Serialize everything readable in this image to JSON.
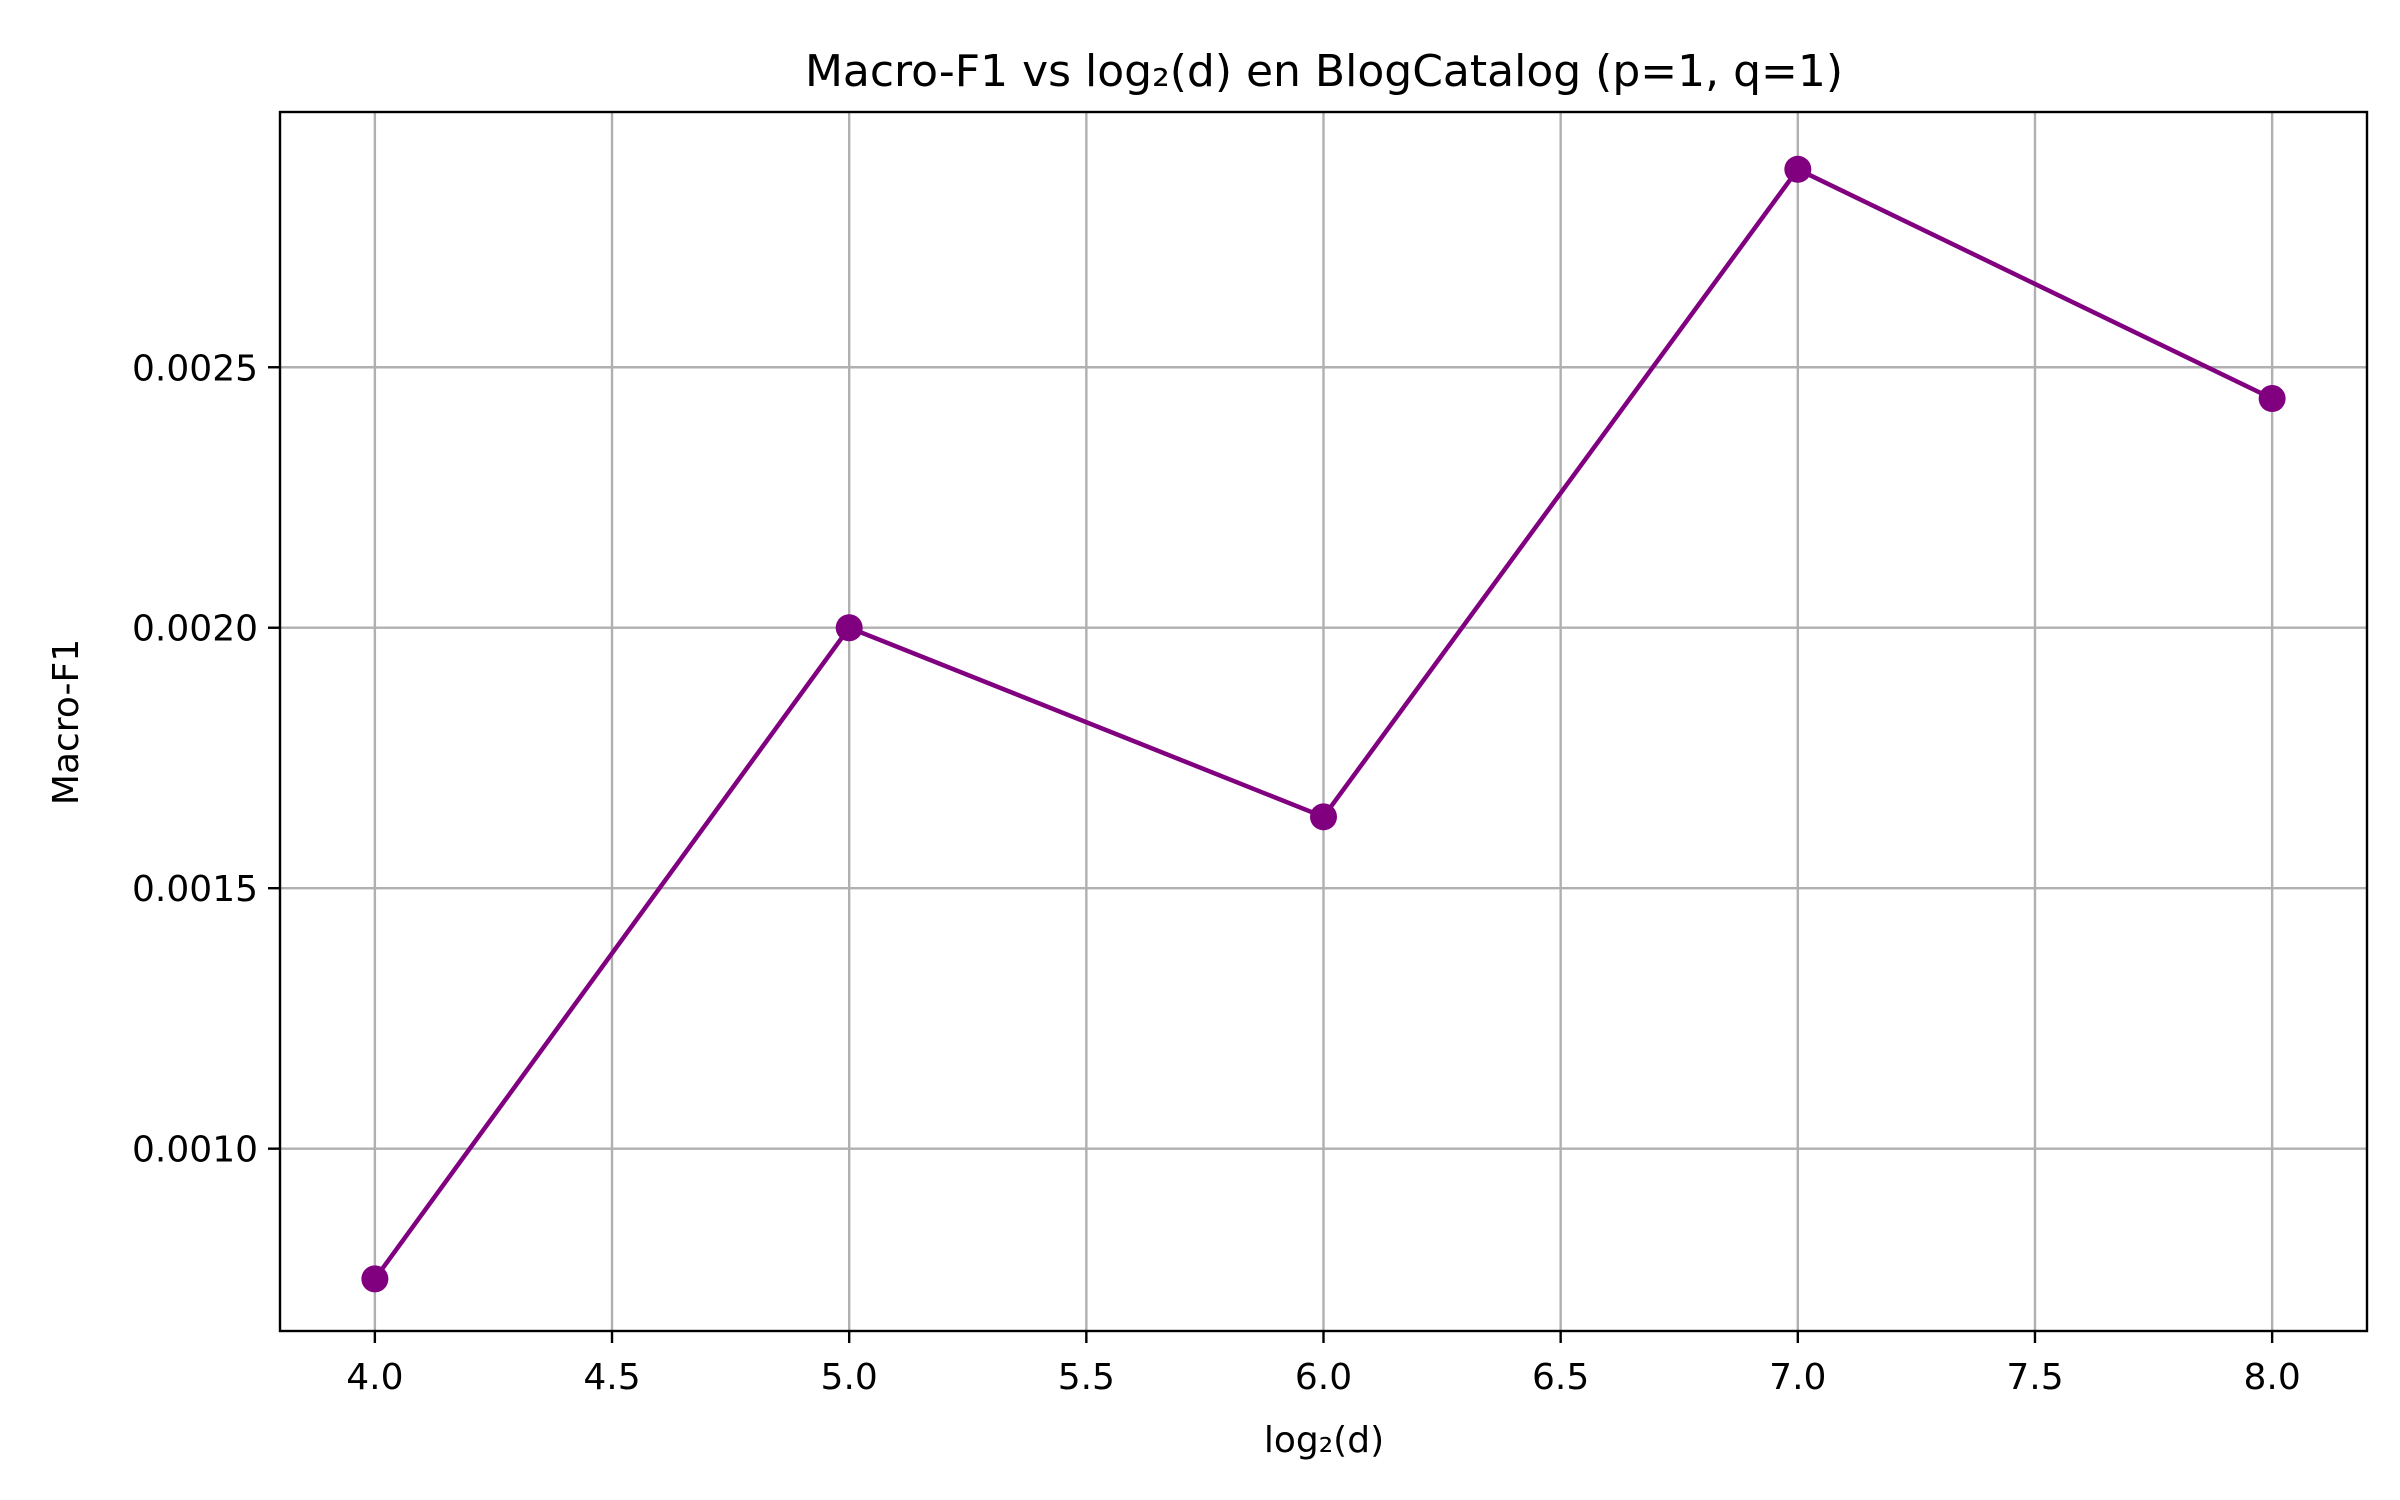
{
  "chart_data": {
    "type": "line",
    "title": "Macro-F1 vs log₂(d) en BlogCatalog (p=1, q=1)",
    "xlabel": "log₂(d)",
    "ylabel": "Macro-F1",
    "xlim": [
      3.8,
      8.2
    ],
    "ylim": [
      0.00065,
      0.00299
    ],
    "xticks": [
      4.0,
      4.5,
      5.0,
      5.5,
      6.0,
      6.5,
      7.0,
      7.5,
      8.0
    ],
    "xtick_labels": [
      "4.0",
      "4.5",
      "5.0",
      "5.5",
      "6.0",
      "6.5",
      "7.0",
      "7.5",
      "8.0"
    ],
    "yticks": [
      0.001,
      0.0015,
      0.002,
      0.0025
    ],
    "ytick_labels": [
      "0.0010",
      "0.0015",
      "0.0020",
      "0.0025"
    ],
    "grid": true,
    "series": [
      {
        "x": [
          4,
          5,
          6,
          7,
          8
        ],
        "values": [
          0.00075,
          0.002,
          0.001637,
          0.00288,
          0.00244
        ],
        "color": "#800080",
        "marker": "circle"
      }
    ]
  }
}
